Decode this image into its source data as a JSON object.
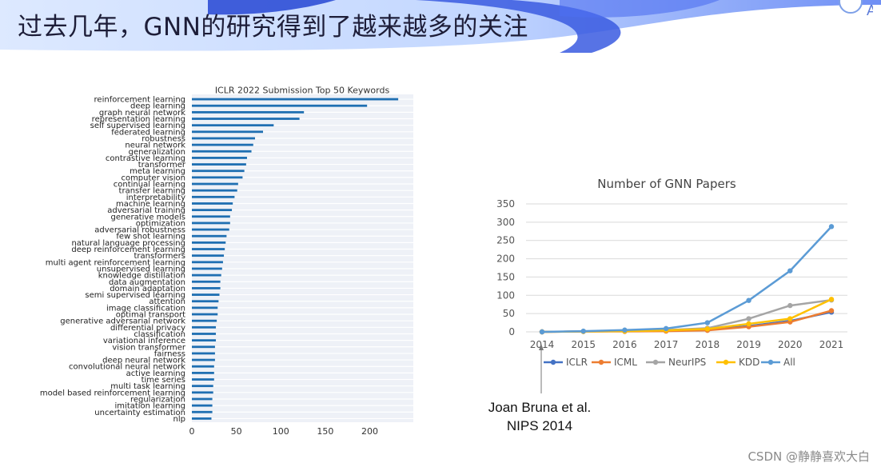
{
  "slide": {
    "title": "过去几年，GNN的研究得到了越来越多的关注",
    "logo_letter": "A",
    "watermark": "CSDN @静静喜欢大白"
  },
  "annotation": {
    "line1": "Joan Bruna et al.",
    "line2": "NIPS 2014"
  },
  "chart_data": [
    {
      "type": "bar",
      "orientation": "horizontal",
      "title": "ICLR 2022 Submission Top 50 Keywords",
      "color": "#1f6fb2",
      "grid": true,
      "xlim": [
        0,
        240
      ],
      "xticks": [
        0,
        50,
        100,
        150,
        200
      ],
      "categories": [
        "reinforcement learning",
        "deep learning",
        "graph neural network",
        "representation learning",
        "self supervised learning",
        "federated learning",
        "robustness",
        "neural network",
        "generalization",
        "contrastive learning",
        "transformer",
        "meta learning",
        "computer vision",
        "continual learning",
        "transfer learning",
        "interpretability",
        "machine learning",
        "adversarial training",
        "generative models",
        "optimization",
        "adversarial robustness",
        "few shot learning",
        "natural language processing",
        "deep reinforcement learning",
        "transformers",
        "multi agent reinforcement learning",
        "unsupervised learning",
        "knowledge distillation",
        "data augmentation",
        "domain adaptation",
        "semi supervised learning",
        "attention",
        "image classification",
        "optimal transport",
        "generative adversarial network",
        "differential privacy",
        "classification",
        "variational inference",
        "vision transformer",
        "fairness",
        "deep neural network",
        "convolutional neural network",
        "active learning",
        "time series",
        "multi task learning",
        "model based reinforcement learning",
        "regularization",
        "imitation learning",
        "uncertainty estimation",
        "nlp"
      ],
      "values": [
        232,
        197,
        126,
        121,
        92,
        80,
        71,
        69,
        67,
        62,
        61,
        59,
        57,
        52,
        51,
        48,
        46,
        45,
        43,
        43,
        42,
        39,
        38,
        37,
        36,
        35,
        34,
        33,
        32,
        32,
        31,
        30,
        29,
        29,
        28,
        27,
        27,
        27,
        26,
        26,
        26,
        25,
        25,
        25,
        24,
        24,
        23,
        23,
        23,
        22
      ]
    },
    {
      "type": "line",
      "title": "Number of GNN Papers",
      "x": [
        2014,
        2015,
        2016,
        2017,
        2018,
        2019,
        2020,
        2021
      ],
      "ylim": [
        0,
        350
      ],
      "yticks": [
        0,
        50,
        100,
        150,
        200,
        250,
        300,
        350
      ],
      "grid": true,
      "legend_position": "bottom",
      "series": [
        {
          "name": "ICLR",
          "color": "#4472c4",
          "values": [
            0,
            1,
            2,
            3,
            6,
            16,
            30,
            54
          ]
        },
        {
          "name": "ICML",
          "color": "#ed7d31",
          "values": [
            0,
            1,
            1,
            2,
            4,
            14,
            27,
            58
          ]
        },
        {
          "name": "NeurIPS",
          "color": "#a5a5a5",
          "values": [
            0,
            1,
            2,
            5,
            10,
            36,
            72,
            87
          ]
        },
        {
          "name": "KDD",
          "color": "#ffc000",
          "values": [
            0,
            1,
            2,
            4,
            8,
            22,
            36,
            89
          ]
        },
        {
          "name": "All",
          "color": "#5b9bd5",
          "values": [
            0,
            2,
            5,
            9,
            25,
            86,
            167,
            288
          ]
        }
      ]
    }
  ]
}
